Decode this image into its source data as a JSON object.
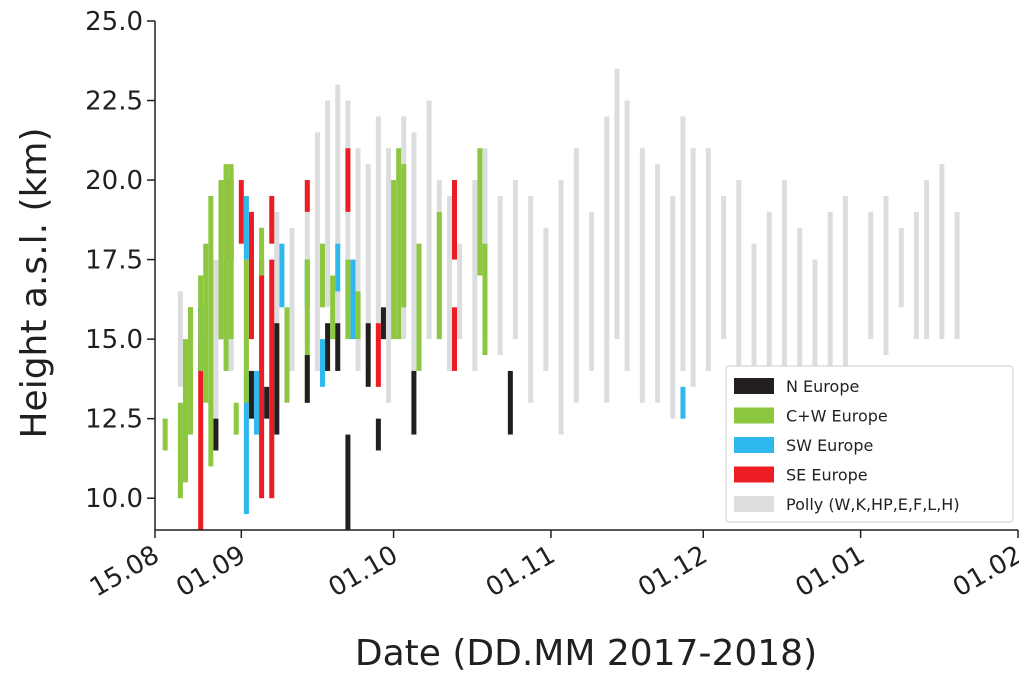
{
  "chart_data": {
    "type": "range",
    "xlabel": "Date (DD.MM 2017-2018)",
    "ylabel": "Height a.s.l. (km)",
    "xlim": [
      "15.08",
      "01.02"
    ],
    "xticks": [
      "15.08",
      "01.09",
      "01.10",
      "01.11",
      "01.12",
      "01.01",
      "01.02"
    ],
    "ylim": [
      9,
      25
    ],
    "yticks": [
      {
        "value": 10,
        "label": "10.0"
      },
      {
        "value": 12.5,
        "label": "12.5"
      },
      {
        "value": 15,
        "label": "15.0"
      },
      {
        "value": 17.5,
        "label": "17.5"
      },
      {
        "value": 20,
        "label": "20.0"
      },
      {
        "value": 22.5,
        "label": "22.5"
      },
      {
        "value": 25,
        "label": "25.0"
      }
    ],
    "legend": "lower right",
    "series": [
      {
        "name": "N Europe",
        "color": "#231f20",
        "x": [
          "27.08",
          "03.09",
          "06.09",
          "08.09",
          "14.09",
          "18.09",
          "20.09",
          "22.09",
          "26.09",
          "28.09",
          "29.09",
          "05.10",
          "24.10"
        ],
        "low": [
          11.5,
          12.5,
          12.5,
          12,
          13,
          14,
          14,
          9,
          13.5,
          11.5,
          15,
          12,
          12
        ],
        "high": [
          12.5,
          14,
          13.5,
          15.5,
          14.5,
          15.5,
          15.5,
          12,
          15.5,
          12.5,
          16,
          14,
          14
        ]
      },
      {
        "name": "C+W Europe",
        "color": "#8dc63f",
        "x": [
          "17.08",
          "20.08",
          "21.08",
          "22.08",
          "24.08",
          "25.08",
          "26.08",
          "28.08",
          "29.08",
          "30.08",
          "31.08",
          "02.09",
          "05.09",
          "10.09",
          "14.09",
          "17.09",
          "19.09",
          "22.09",
          "24.09",
          "01.10",
          "02.10",
          "03.10",
          "06.10",
          "10.10",
          "18.10",
          "19.10"
        ],
        "low": [
          11.5,
          10,
          10.5,
          12,
          14,
          13,
          11,
          15,
          14,
          15,
          12,
          13,
          17,
          13,
          13,
          16,
          15,
          15,
          15,
          15,
          15,
          16,
          14,
          15,
          17,
          14.5
        ],
        "high": [
          12.5,
          13,
          15,
          16,
          17,
          18,
          19.5,
          20,
          20.5,
          20.5,
          13,
          17.5,
          18.5,
          16,
          17.5,
          18,
          17,
          17.5,
          16.5,
          20,
          21,
          20.5,
          18,
          19,
          21,
          18
        ]
      },
      {
        "name": "SW Europe",
        "color": "#2fb8ec",
        "x": [
          "24.08",
          "02.09",
          "02.09",
          "04.09",
          "09.09",
          "14.09",
          "17.09",
          "20.09",
          "23.09",
          "27.11"
        ],
        "low": [
          14,
          9.5,
          17.5,
          12,
          16,
          16,
          13.5,
          16.5,
          15,
          12.5
        ],
        "high": [
          16,
          14,
          19.5,
          14,
          18,
          17.5,
          15,
          18,
          17.5,
          13.5
        ]
      },
      {
        "name": "SE Europe",
        "color": "#ec1c24",
        "x": [
          "22.08",
          "24.08",
          "28.08",
          "30.08",
          "01.09",
          "03.09",
          "05.09",
          "07.09",
          "07.09",
          "14.09",
          "22.09",
          "28.09",
          "13.10",
          "13.10"
        ],
        "low": [
          15,
          9,
          15,
          17.5,
          18,
          15,
          10,
          10,
          18,
          19,
          19,
          13.5,
          17.5,
          14
        ],
        "high": [
          16,
          15,
          17,
          20,
          20,
          19,
          17.5,
          17.5,
          19.5,
          20,
          21,
          15.5,
          20,
          16
        ]
      },
      {
        "name": "Polly (W,K,HP,E,F,L,H)",
        "color": "#dcdddf",
        "x": [
          "20.08",
          "24.08",
          "27.08",
          "30.08",
          "02.09",
          "05.09",
          "08.09",
          "11.09",
          "14.09",
          "16.09",
          "18.09",
          "20.09",
          "22.09",
          "24.09",
          "26.09",
          "28.09",
          "30.09",
          "03.10",
          "05.10",
          "08.10",
          "10.10",
          "12.10",
          "14.10",
          "17.10",
          "19.10",
          "22.10",
          "25.10",
          "28.10",
          "31.10",
          "03.11",
          "06.11",
          "09.11",
          "12.11",
          "14.11",
          "16.11",
          "19.11",
          "22.11",
          "25.11",
          "27.11",
          "29.11",
          "02.12",
          "05.12",
          "08.12",
          "11.12",
          "14.12",
          "17.12",
          "20.12",
          "23.12",
          "26.12",
          "29.12",
          "03.01",
          "06.01",
          "09.01",
          "12.01",
          "14.01",
          "17.01",
          "20.01"
        ],
        "low": [
          13.5,
          13,
          12,
          14,
          13,
          12,
          13,
          14,
          15,
          14,
          16,
          15,
          16,
          14,
          15,
          15,
          13,
          15,
          14,
          15,
          15,
          14,
          15,
          14,
          15,
          14.5,
          15,
          13,
          14,
          12,
          13,
          14,
          13,
          15,
          14,
          13,
          13,
          12.5,
          14,
          13.5,
          14,
          15,
          13,
          14,
          13,
          14,
          13,
          13,
          14,
          13.5,
          15,
          14.5,
          16,
          15,
          15,
          15,
          15
        ],
        "high": [
          16.5,
          17,
          17.5,
          18,
          18.5,
          17,
          19,
          18.5,
          20,
          21.5,
          22.5,
          23,
          22.5,
          21,
          20.5,
          22,
          21,
          22,
          21.5,
          22.5,
          20,
          19.5,
          18,
          20,
          21,
          19.5,
          20,
          19.5,
          18.5,
          20,
          21,
          19,
          22,
          23.5,
          22.5,
          21,
          20.5,
          19.5,
          22,
          21,
          21,
          19.5,
          20,
          18,
          19,
          20,
          18.5,
          17.5,
          19,
          19.5,
          19,
          19.5,
          18.5,
          19,
          20,
          20.5,
          19
        ]
      }
    ]
  }
}
